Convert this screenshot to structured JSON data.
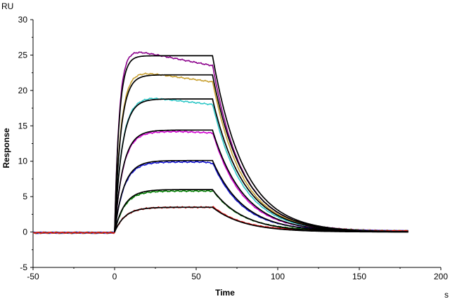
{
  "chart_data": {
    "type": "line",
    "title": "",
    "xlabel": "Time",
    "ylabel": "Response",
    "x_unit": "s",
    "y_unit": "RU",
    "xlim": [
      -50,
      200
    ],
    "ylim": [
      -5,
      30
    ],
    "x_ticks": [
      -50,
      0,
      50,
      100,
      150,
      200
    ],
    "y_ticks": [
      -5,
      0,
      5,
      10,
      15,
      20,
      25,
      30
    ],
    "x_tick_labels": [
      "-50",
      "0",
      "50",
      "100",
      "150",
      "200"
    ],
    "y_tick_labels": [
      "-5",
      "0",
      "5",
      "10",
      "15",
      "20",
      "25",
      "30"
    ],
    "grid": false,
    "legend": "none",
    "series": [
      {
        "color": "#8b008b",
        "role": "measured",
        "plateau": 25.9,
        "end_assoc": 23.5,
        "peak_time": 6
      },
      {
        "color": "#c8a030",
        "role": "measured",
        "plateau": 22.8,
        "end_assoc": 21.2,
        "peak_time": 10
      },
      {
        "color": "#30c8c8",
        "role": "measured",
        "plateau": 19.0,
        "end_assoc": 18.0,
        "peak_time": 22
      },
      {
        "color": "#d000d0",
        "role": "measured",
        "plateau": 14.2,
        "end_assoc": 14.0,
        "peak_time": 40
      },
      {
        "color": "#1010d0",
        "role": "measured",
        "plateau": 9.9,
        "end_assoc": 9.7,
        "peak_time": 55
      },
      {
        "color": "#008000",
        "role": "measured",
        "plateau": 5.8,
        "end_assoc": 5.8,
        "peak_time": 60
      },
      {
        "color": "#e01010",
        "role": "measured",
        "plateau": 3.5,
        "end_assoc": 3.5,
        "peak_time": 60
      },
      {
        "color": "#000000",
        "role": "fit",
        "plateau": 24.9
      },
      {
        "color": "#000000",
        "role": "fit",
        "plateau": 22.2
      },
      {
        "color": "#000000",
        "role": "fit",
        "plateau": 18.8
      },
      {
        "color": "#000000",
        "role": "fit",
        "plateau": 14.4
      },
      {
        "color": "#000000",
        "role": "fit",
        "plateau": 10.1
      },
      {
        "color": "#000000",
        "role": "fit",
        "plateau": 6.0
      },
      {
        "color": "#000000",
        "role": "fit",
        "plateau": 3.5
      }
    ],
    "association_start": 0,
    "dissociation_start": 60,
    "end_time": 180
  }
}
